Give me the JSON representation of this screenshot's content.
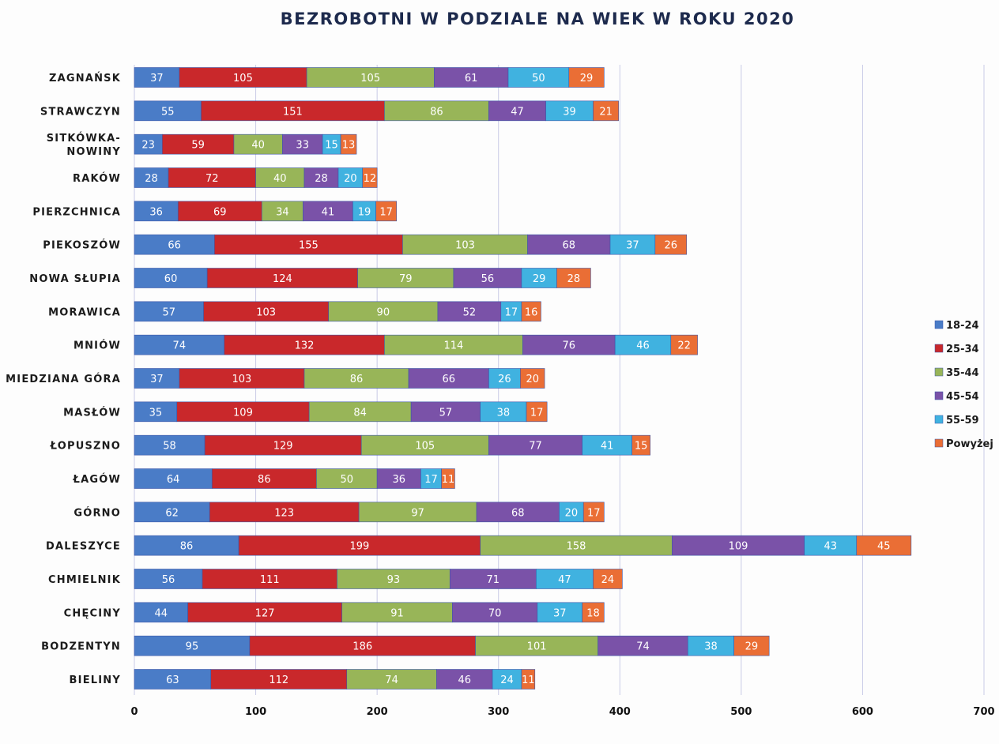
{
  "chart_data": {
    "type": "bar",
    "orientation": "horizontal",
    "stacked": true,
    "title": "BEZROBOTNI W PODZIALE NA WIEK W ROKU 2020",
    "xlabel": "",
    "ylabel": "",
    "xlim": [
      0,
      700
    ],
    "x_ticks": [
      0,
      100,
      200,
      300,
      400,
      500,
      600,
      700
    ],
    "grid": true,
    "legend_position": "right",
    "categories": [
      "ZAGNAŃSK",
      "STRAWCZYN",
      "SITKÓWKA-NOWINY",
      "RAKÓW",
      "PIERZCHNICA",
      "PIEKOSZÓW",
      "NOWA SŁUPIA",
      "MORAWICA",
      "MNIÓW",
      "MIEDZIANA GÓRA",
      "MASŁÓW",
      "ŁOPUSZNO",
      "ŁAGÓW",
      "GÓRNO",
      "DALESZYCE",
      "CHMIELNIK",
      "CHĘCINY",
      "BODZENTYN",
      "BIELINY"
    ],
    "category_lines": [
      [
        "ZAGNAŃSK"
      ],
      [
        "STRAWCZYN"
      ],
      [
        "SITKÓWKA-",
        "NOWINY"
      ],
      [
        "RAKÓW"
      ],
      [
        "PIERZCHNICA"
      ],
      [
        "PIEKOSZÓW"
      ],
      [
        "NOWA SŁUPIA"
      ],
      [
        "MORAWICA"
      ],
      [
        "MNIÓW"
      ],
      [
        "MIEDZIANA GÓRA"
      ],
      [
        "MASŁÓW"
      ],
      [
        "ŁOPUSZNO"
      ],
      [
        "ŁAGÓW"
      ],
      [
        "GÓRNO"
      ],
      [
        "DALESZYCE"
      ],
      [
        "CHMIELNIK"
      ],
      [
        "CHĘCINY"
      ],
      [
        "BODZENTYN"
      ],
      [
        "BIELINY"
      ]
    ],
    "series": [
      {
        "name": "18-24",
        "color": "#4a7cc7",
        "values": [
          37,
          55,
          23,
          28,
          36,
          66,
          60,
          57,
          74,
          37,
          35,
          58,
          64,
          62,
          86,
          56,
          44,
          95,
          63
        ]
      },
      {
        "name": "25-34",
        "color": "#c9282b",
        "values": [
          105,
          151,
          59,
          72,
          69,
          155,
          124,
          103,
          132,
          103,
          109,
          129,
          86,
          123,
          199,
          111,
          127,
          186,
          112
        ]
      },
      {
        "name": "35-44",
        "color": "#98b558",
        "values": [
          105,
          86,
          40,
          40,
          34,
          103,
          79,
          90,
          114,
          86,
          84,
          105,
          50,
          97,
          158,
          93,
          91,
          101,
          74
        ]
      },
      {
        "name": "45-54",
        "color": "#7a52a8",
        "values": [
          61,
          47,
          33,
          28,
          41,
          68,
          56,
          52,
          76,
          66,
          57,
          77,
          36,
          68,
          109,
          71,
          70,
          74,
          46
        ]
      },
      {
        "name": "55-59",
        "color": "#40b2e0",
        "values": [
          50,
          39,
          15,
          20,
          19,
          37,
          29,
          17,
          46,
          26,
          38,
          41,
          17,
          20,
          43,
          47,
          37,
          38,
          24
        ]
      },
      {
        "name": "Powyżej",
        "color": "#ea6e35",
        "values": [
          29,
          21,
          13,
          12,
          17,
          26,
          28,
          16,
          22,
          20,
          17,
          15,
          11,
          17,
          45,
          24,
          18,
          29,
          11
        ]
      }
    ]
  }
}
